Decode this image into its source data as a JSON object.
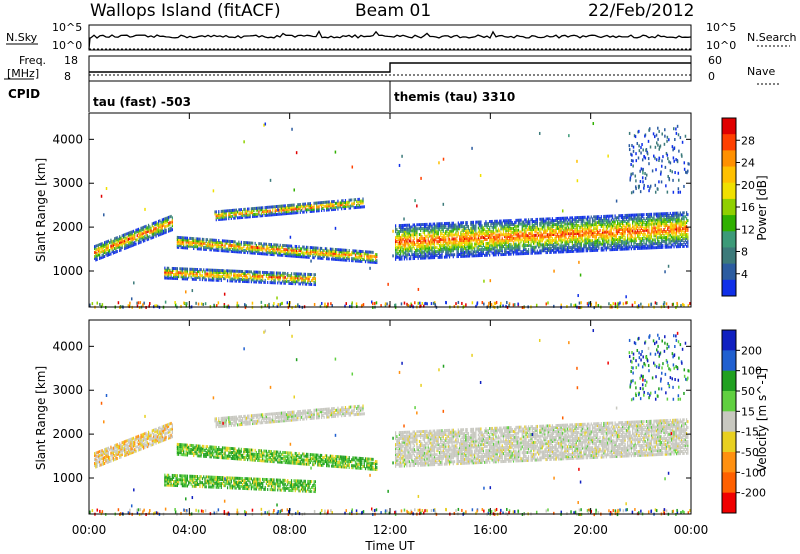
{
  "header": {
    "station": "Wallops Island (fitACF)",
    "beam": "Beam 01",
    "date": "22/Feb/2012"
  },
  "top_panels": {
    "nsky_label": "N.Sky",
    "nsearch_label": "N.Search",
    "noise_ticks_left": [
      "10^5",
      "10^0"
    ],
    "noise_ticks_right": [
      "10^5",
      "10^0"
    ],
    "freq_label_line1": "Freq.",
    "freq_label_line2": "[MHz]",
    "freq_ticks": [
      "18",
      "8"
    ],
    "nave_label": "Nave",
    "nave_ticks": [
      "60",
      "0"
    ],
    "cpid_label": "CPID",
    "cpid_segments": [
      {
        "name": "tau (fast) -503",
        "start_hour": 0
      },
      {
        "name": "themis (tau) 3310",
        "start_hour": 12
      }
    ]
  },
  "chart_data": [
    {
      "type": "heatmap",
      "panel": "power",
      "ylabel": "Slant Range [km]",
      "xlabel": "",
      "x_range_hours": [
        0,
        24
      ],
      "ylim": [
        180,
        4600
      ],
      "y_ticks": [
        1000,
        2000,
        3000,
        4000
      ],
      "colorbar": {
        "label": "Power [dB]",
        "ticks": [
          "28",
          "24",
          "20",
          "16",
          "12",
          "8",
          "4"
        ],
        "colors": [
          "#e00000",
          "#ff4000",
          "#ff9000",
          "#ffc000",
          "#f0e000",
          "#90d000",
          "#30b000",
          "#3c9a78",
          "#3c7a7a",
          "#2c5ca0",
          "#1030e8"
        ]
      },
      "features": [
        {
          "name": "evening band",
          "start_hour": 0.2,
          "end_hour": 3.3,
          "range_start_km": 1450,
          "range_end_km": 2150,
          "thickness_km": 350
        },
        {
          "name": "pre-midnight band",
          "start_hour": 3.5,
          "end_hour": 11.5,
          "range_start_km": 1700,
          "range_end_km": 1350,
          "thickness_km": 250
        },
        {
          "name": "upper arc",
          "start_hour": 5.0,
          "end_hour": 11.0,
          "range_start_km": 2300,
          "range_end_km": 2600,
          "thickness_km": 200
        },
        {
          "name": "lower patch",
          "start_hour": 3.0,
          "end_hour": 9.0,
          "range_start_km": 1000,
          "range_end_km": 850,
          "thickness_km": 250
        },
        {
          "name": "post-midnight band",
          "start_hour": 12.2,
          "end_hour": 23.9,
          "range_start_km": 1700,
          "range_end_km": 2000,
          "thickness_km": 800
        }
      ]
    },
    {
      "type": "heatmap",
      "panel": "velocity",
      "ylabel": "Slant Range [km]",
      "xlabel": "Time UT",
      "x_ticks": [
        "00:00",
        "04:00",
        "08:00",
        "12:00",
        "16:00",
        "20:00",
        "00:00"
      ],
      "x_range_hours": [
        0,
        24
      ],
      "ylim": [
        180,
        4600
      ],
      "y_ticks": [
        1000,
        2000,
        3000,
        4000
      ],
      "colorbar": {
        "label": "Velocity [m s^-1]",
        "ticks": [
          "200",
          "100",
          "50",
          "15",
          "-15",
          "-50",
          "-100",
          "-200"
        ],
        "colors": [
          "#1020c0",
          "#2060d0",
          "#20a020",
          "#60d040",
          "#c8c8c0",
          "#e8d020",
          "#ff9010",
          "#ff6000",
          "#f00000"
        ]
      }
    }
  ]
}
